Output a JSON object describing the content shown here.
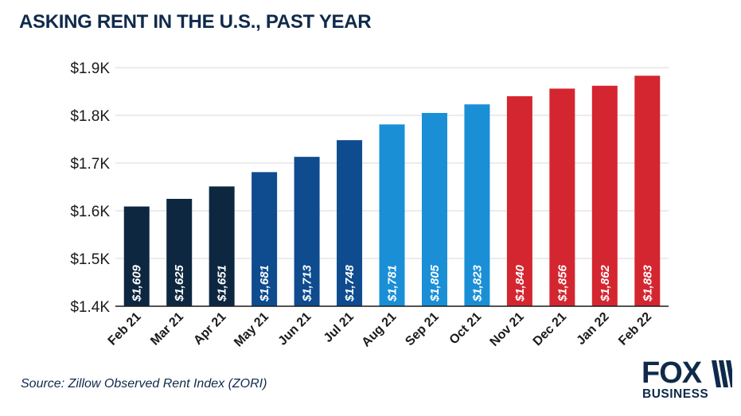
{
  "chart_data": {
    "type": "bar",
    "title": "ASKING RENT IN THE U.S., PAST YEAR",
    "xlabel": "",
    "ylabel": "",
    "categories": [
      "Feb 21",
      "Mar 21",
      "Apr 21",
      "May 21",
      "Jun 21",
      "Jul 21",
      "Aug 21",
      "Sep 21",
      "Oct 21",
      "Nov 21",
      "Dec 21",
      "Jan 22",
      "Feb 22"
    ],
    "values": [
      1609,
      1625,
      1651,
      1681,
      1713,
      1748,
      1781,
      1805,
      1823,
      1840,
      1856,
      1862,
      1883
    ],
    "value_labels": [
      "$1,609",
      "$1,625",
      "$1,651",
      "$1,681",
      "$1,713",
      "$1,748",
      "$1,781",
      "$1,805",
      "$1,823",
      "$1,840",
      "$1,856",
      "$1,862",
      "$1,883"
    ],
    "bar_colors": [
      "#0d2740",
      "#0d2740",
      "#0d2740",
      "#0e4b8f",
      "#0e4b8f",
      "#0e4b8f",
      "#1a8fd6",
      "#1a8fd6",
      "#1a8fd6",
      "#d42630",
      "#d42630",
      "#d42630",
      "#d42630"
    ],
    "ylim": [
      1400,
      1900
    ],
    "yticks": [
      1400,
      1500,
      1600,
      1700,
      1800,
      1900
    ],
    "ytick_labels": [
      "$1.4K",
      "$1.5K",
      "$1.6K",
      "$1.7K",
      "$1.8K",
      "$1.9K"
    ],
    "grid": true,
    "legend": "none"
  },
  "source": "Source:  Zillow Observed Rent Index (ZORI)",
  "logo": {
    "top": "FOX",
    "bottom": "BUSINESS",
    "color": "#0f2a4a"
  }
}
